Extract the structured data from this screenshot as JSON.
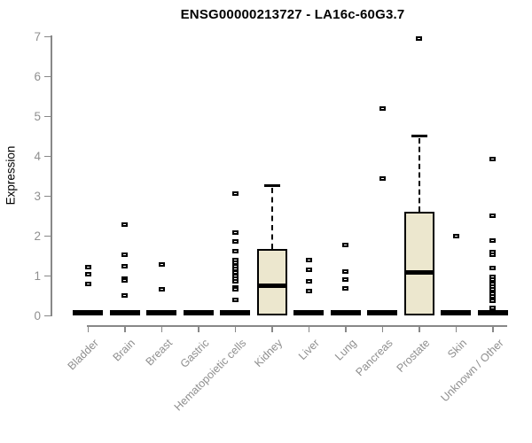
{
  "chart_data": {
    "type": "boxplot",
    "title": "ENSG00000213727 - LA16c-60G3.7",
    "ylabel": "Expression",
    "xlabel": "",
    "ylim": [
      0,
      7
    ],
    "yticks": [
      0,
      1,
      2,
      3,
      4,
      5,
      6,
      7
    ],
    "grid": false,
    "legend": "none",
    "box_fill_color": "#ECE7CE",
    "box_line_color": "#000000",
    "axis_color": "#888888",
    "label_color": "#8f8f8f",
    "categories": [
      "Bladder",
      "Brain",
      "Breast",
      "Gastric",
      "Hematopoietic cells",
      "Kidney",
      "Liver",
      "Lung",
      "Pancreas",
      "Prostate",
      "Skin",
      "Unknown / Other"
    ],
    "boxes": [
      {
        "category": "Bladder",
        "q1": 0,
        "median": 0,
        "q3": 0,
        "whisker_low": 0,
        "whisker_high": 0,
        "outliers": [
          1.22,
          1.03,
          0.8
        ]
      },
      {
        "category": "Brain",
        "q1": 0,
        "median": 0,
        "q3": 0,
        "whisker_low": 0,
        "whisker_high": 0,
        "outliers": [
          2.28,
          1.52,
          1.24,
          0.93,
          0.88,
          0.5
        ]
      },
      {
        "category": "Breast",
        "q1": 0,
        "median": 0,
        "q3": 0,
        "whisker_low": 0,
        "whisker_high": 0,
        "outliers": [
          1.27,
          0.65
        ]
      },
      {
        "category": "Gastric",
        "q1": 0,
        "median": 0,
        "q3": 0,
        "whisker_low": 0,
        "whisker_high": 0,
        "outliers": []
      },
      {
        "category": "Hematopoietic cells",
        "q1": 0,
        "median": 0,
        "q3": 0,
        "whisker_low": 0,
        "whisker_high": 0,
        "outliers": [
          3.05,
          2.08,
          1.85,
          1.62,
          1.4,
          1.32,
          1.24,
          1.16,
          1.08,
          1.0,
          0.93,
          0.86,
          0.7,
          0.65,
          0.38
        ]
      },
      {
        "category": "Kidney",
        "q1": 0,
        "median": 0.75,
        "q3": 1.67,
        "whisker_low": 0,
        "whisker_high": 3.25,
        "outliers": []
      },
      {
        "category": "Liver",
        "q1": 0,
        "median": 0,
        "q3": 0,
        "whisker_low": 0,
        "whisker_high": 0,
        "outliers": [
          1.4,
          1.15,
          0.86,
          0.62
        ]
      },
      {
        "category": "Lung",
        "q1": 0,
        "median": 0,
        "q3": 0,
        "whisker_low": 0,
        "whisker_high": 0,
        "outliers": [
          1.76,
          1.1,
          0.9,
          0.67
        ]
      },
      {
        "category": "Pancreas",
        "q1": 0,
        "median": 0,
        "q3": 0,
        "whisker_low": 0,
        "whisker_high": 0,
        "outliers": [
          5.18,
          3.44
        ]
      },
      {
        "category": "Prostate",
        "q1": 0,
        "median": 1.08,
        "q3": 2.6,
        "whisker_low": 0,
        "whisker_high": 4.5,
        "outliers": [
          6.95
        ]
      },
      {
        "category": "Skin",
        "q1": 0,
        "median": 0,
        "q3": 0,
        "whisker_low": 0,
        "whisker_high": 0,
        "outliers": [
          1.98
        ]
      },
      {
        "category": "Unknown / Other",
        "q1": 0,
        "median": 0,
        "q3": 0,
        "whisker_low": 0,
        "whisker_high": 0,
        "outliers": [
          3.93,
          2.49,
          1.87,
          1.58,
          1.52,
          1.18,
          0.97,
          0.9,
          0.84,
          0.78,
          0.72,
          0.66,
          0.6,
          0.54,
          0.48,
          0.42,
          0.36,
          0.2
        ]
      }
    ]
  }
}
